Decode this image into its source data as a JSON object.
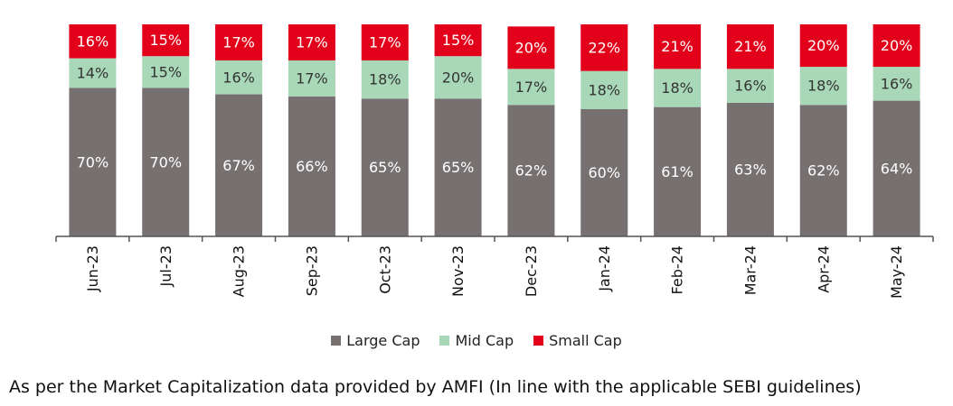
{
  "chart_data": {
    "type": "bar",
    "stacked": true,
    "categories": [
      "Jun-23",
      "Jul-23",
      "Aug-23",
      "Sep-23",
      "Oct-23",
      "Nov-23",
      "Dec-23",
      "Jan-24",
      "Feb-24",
      "Mar-24",
      "Apr-24",
      "May-24"
    ],
    "series": [
      {
        "name": "Large Cap",
        "color": "#767170",
        "values": [
          70,
          70,
          67,
          66,
          65,
          65,
          62,
          60,
          61,
          63,
          62,
          64
        ]
      },
      {
        "name": "Mid Cap",
        "color": "#a9d8b8",
        "values": [
          14,
          15,
          16,
          17,
          18,
          20,
          17,
          18,
          18,
          16,
          18,
          16
        ]
      },
      {
        "name": "Small Cap",
        "color": "#e2001a",
        "values": [
          16,
          15,
          17,
          17,
          17,
          15,
          20,
          22,
          21,
          21,
          20,
          20
        ]
      }
    ],
    "value_labels": [
      [
        "70%",
        "70%",
        "67%",
        "66%",
        "65%",
        "65%",
        "62%",
        "60%",
        "61%",
        "63%",
        "62%",
        "64%"
      ],
      [
        "14%",
        "15%",
        "16%",
        "17%",
        "18%",
        "20%",
        "17%",
        "18%",
        "18%",
        "16%",
        "18%",
        "16%"
      ],
      [
        "16%",
        "15%",
        "17%",
        "17%",
        "17%",
        "15%",
        "20%",
        "22%",
        "21%",
        "21%",
        "20%",
        "20%"
      ]
    ],
    "ylim": [
      0,
      100
    ],
    "grid": false,
    "legend_position": "bottom"
  },
  "legend": {
    "items": [
      {
        "label": "Large Cap",
        "color": "#767170"
      },
      {
        "label": "Mid Cap",
        "color": "#a9d8b8"
      },
      {
        "label": "Small Cap",
        "color": "#e2001a"
      }
    ]
  },
  "footnote": "As per the Market Capitalization data provided by AMFI (In line with the applicable SEBI guidelines)"
}
